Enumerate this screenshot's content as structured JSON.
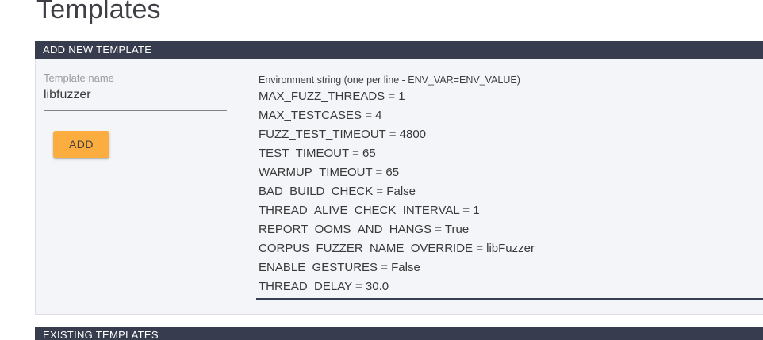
{
  "page": {
    "title": "Templates"
  },
  "colors": {
    "section_header_bg": "#373d4f",
    "panel_bg": "#f3f5f9",
    "accent_orange": "#fbae3f",
    "focused_underline": "#3a4053",
    "idle_underline": "#828282"
  },
  "add_section": {
    "header": "ADD NEW TEMPLATE",
    "form": {
      "name_label": "Template name",
      "name_value": "libfuzzer",
      "add_button_label": "ADD",
      "env_label": "Environment string (one per line - ENV_VAR=ENV_VALUE)",
      "env_lines": [
        "MAX_FUZZ_THREADS = 1",
        "MAX_TESTCASES = 4",
        "FUZZ_TEST_TIMEOUT = 4800",
        "TEST_TIMEOUT = 65",
        "WARMUP_TIMEOUT = 65",
        "BAD_BUILD_CHECK = False",
        "THREAD_ALIVE_CHECK_INTERVAL = 1",
        "REPORT_OOMS_AND_HANGS = True",
        "CORPUS_FUZZER_NAME_OVERRIDE = libFuzzer",
        "ENABLE_GESTURES = False",
        "THREAD_DELAY = 30.0"
      ]
    }
  },
  "existing_section": {
    "header": "EXISTING TEMPLATES"
  }
}
